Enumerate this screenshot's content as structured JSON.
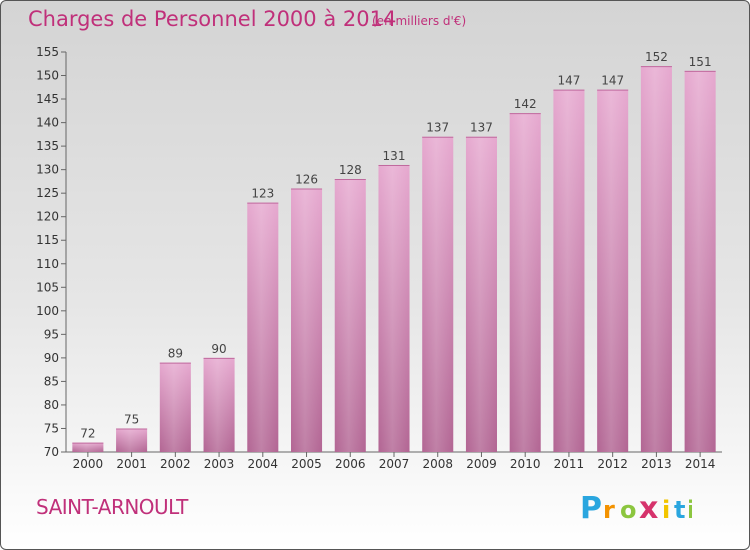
{
  "header": {
    "title": "Charges de Personnel 2000 à 2014",
    "subtitle": "(en milliers d'€)"
  },
  "footer": {
    "town": "SAINT-ARNOULT",
    "logo_text": "Proxiti",
    "logo_letters": [
      "P",
      "r",
      "o",
      "x",
      "i",
      "t",
      "i"
    ],
    "logo_colors": [
      "#2aa6df",
      "#f39200",
      "#8cc63f",
      "#d6336c",
      "#f2c500",
      "#2aa6df",
      "#8cc63f"
    ]
  },
  "colors": {
    "bar": "#d489b7",
    "bar_light": "#e6a8cf",
    "bar_dark": "#b26593",
    "title": "#c0307a"
  },
  "chart_data": {
    "type": "bar",
    "categories": [
      "2000",
      "2001",
      "2002",
      "2003",
      "2004",
      "2005",
      "2006",
      "2007",
      "2008",
      "2009",
      "2010",
      "2011",
      "2012",
      "2013",
      "2014"
    ],
    "values": [
      72,
      75,
      89,
      90,
      123,
      126,
      128,
      131,
      137,
      137,
      142,
      147,
      147,
      152,
      151
    ],
    "title": "Charges de Personnel 2000 à 2014",
    "subtitle": "(en milliers d'€)",
    "xlabel": "",
    "ylabel": "",
    "ylim": [
      70,
      155
    ],
    "yticks": [
      70,
      75,
      80,
      85,
      90,
      95,
      100,
      105,
      110,
      115,
      120,
      125,
      130,
      135,
      140,
      145,
      150,
      155
    ],
    "grid": false,
    "legend": "none"
  }
}
